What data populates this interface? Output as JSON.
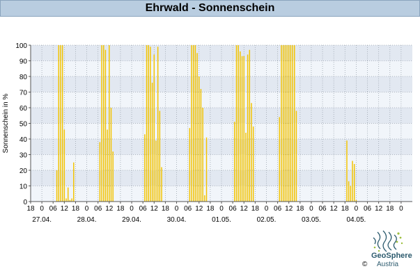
{
  "title": "Ehrwald - Sonnenschein",
  "brand": {
    "name": "GeoSphere",
    "sub": "Austria",
    "copyright": "©"
  },
  "colors": {
    "bar": "#f2c300",
    "band_light": "#f1f5fa",
    "band_dark": "#e2e8f1",
    "grid": "#9aa3ad"
  },
  "chart_data": {
    "type": "bar",
    "title": "Ehrwald - Sonnenschein",
    "ylabel": "Sonnenschein in %",
    "xlabel": "",
    "ylim": [
      0,
      100
    ],
    "yticks": [
      0,
      10,
      20,
      30,
      40,
      50,
      60,
      70,
      80,
      90,
      100
    ],
    "grid": true,
    "x_start_hour": -6,
    "x_end_hour": 198,
    "bar_hours": 1,
    "xtick_hours": [
      -6,
      0,
      6,
      12,
      18,
      24,
      30,
      36,
      42,
      48,
      54,
      60,
      66,
      72,
      78,
      84,
      90,
      96,
      102,
      108,
      114,
      120,
      126,
      132,
      138,
      144,
      150,
      156,
      162,
      168,
      174,
      180,
      186,
      192
    ],
    "xtick_labels": [
      "18",
      "0",
      "06",
      "12",
      "18",
      "0",
      "06",
      "12",
      "18",
      "0",
      "06",
      "12",
      "18",
      "0",
      "06",
      "12",
      "18",
      "0",
      "06",
      "12",
      "18",
      "0",
      "06",
      "12",
      "18",
      "0",
      "06",
      "12",
      "18",
      "0",
      "06",
      "12",
      "18",
      "0"
    ],
    "date_labels": [
      {
        "hour": 0,
        "label": "27.04."
      },
      {
        "hour": 24,
        "label": "28.04."
      },
      {
        "hour": 48,
        "label": "29.04."
      },
      {
        "hour": 72,
        "label": "30.04."
      },
      {
        "hour": 96,
        "label": "01.05."
      },
      {
        "hour": 120,
        "label": "02.05."
      },
      {
        "hour": 144,
        "label": "03.05."
      },
      {
        "hour": 168,
        "label": "04.05."
      }
    ],
    "points": [
      {
        "h": 8,
        "v": 20
      },
      {
        "h": 9,
        "v": 100
      },
      {
        "h": 10,
        "v": 100
      },
      {
        "h": 11,
        "v": 100
      },
      {
        "h": 12,
        "v": 46
      },
      {
        "h": 13,
        "v": 2
      },
      {
        "h": 14,
        "v": 9
      },
      {
        "h": 15,
        "v": 1
      },
      {
        "h": 16,
        "v": 2
      },
      {
        "h": 17,
        "v": 25
      },
      {
        "h": 31,
        "v": 38
      },
      {
        "h": 32,
        "v": 100
      },
      {
        "h": 33,
        "v": 100
      },
      {
        "h": 34,
        "v": 97
      },
      {
        "h": 35,
        "v": 46
      },
      {
        "h": 36,
        "v": 100
      },
      {
        "h": 37,
        "v": 60
      },
      {
        "h": 38,
        "v": 32
      },
      {
        "h": 55,
        "v": 43
      },
      {
        "h": 56,
        "v": 100
      },
      {
        "h": 57,
        "v": 100
      },
      {
        "h": 58,
        "v": 99
      },
      {
        "h": 59,
        "v": 76
      },
      {
        "h": 60,
        "v": 94
      },
      {
        "h": 61,
        "v": 39
      },
      {
        "h": 62,
        "v": 99
      },
      {
        "h": 63,
        "v": 58
      },
      {
        "h": 64,
        "v": 22
      },
      {
        "h": 79,
        "v": 47
      },
      {
        "h": 80,
        "v": 100
      },
      {
        "h": 81,
        "v": 100
      },
      {
        "h": 82,
        "v": 100
      },
      {
        "h": 83,
        "v": 95
      },
      {
        "h": 84,
        "v": 80
      },
      {
        "h": 85,
        "v": 72
      },
      {
        "h": 86,
        "v": 60
      },
      {
        "h": 87,
        "v": 4
      },
      {
        "h": 88,
        "v": 41
      },
      {
        "h": 103,
        "v": 51
      },
      {
        "h": 104,
        "v": 100
      },
      {
        "h": 105,
        "v": 100
      },
      {
        "h": 106,
        "v": 96
      },
      {
        "h": 107,
        "v": 93
      },
      {
        "h": 108,
        "v": 93
      },
      {
        "h": 109,
        "v": 44
      },
      {
        "h": 110,
        "v": 94
      },
      {
        "h": 111,
        "v": 97
      },
      {
        "h": 112,
        "v": 63
      },
      {
        "h": 113,
        "v": 48
      },
      {
        "h": 127,
        "v": 54
      },
      {
        "h": 128,
        "v": 100
      },
      {
        "h": 129,
        "v": 100
      },
      {
        "h": 130,
        "v": 100
      },
      {
        "h": 131,
        "v": 100
      },
      {
        "h": 132,
        "v": 100
      },
      {
        "h": 133,
        "v": 100
      },
      {
        "h": 134,
        "v": 100
      },
      {
        "h": 135,
        "v": 100
      },
      {
        "h": 136,
        "v": 58
      },
      {
        "h": 163,
        "v": 39
      },
      {
        "h": 164,
        "v": 13
      },
      {
        "h": 165,
        "v": 10
      },
      {
        "h": 166,
        "v": 26
      },
      {
        "h": 167,
        "v": 24
      },
      {
        "h": 168,
        "v": 1
      }
    ]
  }
}
